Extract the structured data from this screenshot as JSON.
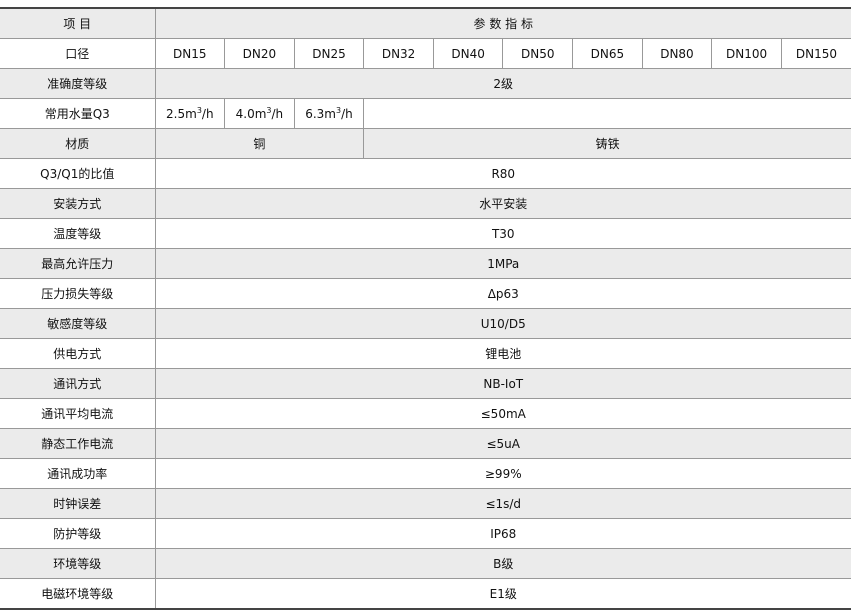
{
  "header": {
    "item": "项 目",
    "spec": "参 数 指 标"
  },
  "diameter": {
    "label": "口径",
    "values": [
      "DN15",
      "DN20",
      "DN25",
      "DN32",
      "DN40",
      "DN50",
      "DN65",
      "DN80",
      "DN100",
      "DN150"
    ]
  },
  "accuracy": {
    "label": "准确度等级",
    "value": "2级"
  },
  "q3": {
    "label": "常用水量Q3",
    "values": [
      "2.5m",
      "4.0m",
      "6.3m"
    ],
    "sup": "3",
    "unit": "/h"
  },
  "material": {
    "label": "材质",
    "small": "铜",
    "large": "铸铁"
  },
  "rows": [
    {
      "label": "Q3/Q1的比值",
      "value": "R80"
    },
    {
      "label": "安装方式",
      "value": "水平安装"
    },
    {
      "label": "温度等级",
      "value": "T30"
    },
    {
      "label": "最高允许压力",
      "value": "1MPa"
    },
    {
      "label": "压力损失等级",
      "value": "Δp63"
    },
    {
      "label": "敏感度等级",
      "value": "U10/D5"
    },
    {
      "label": "供电方式",
      "value": "锂电池"
    },
    {
      "label": "通讯方式",
      "value": "NB-IoT"
    },
    {
      "label": "通讯平均电流",
      "value": "≤50mA"
    },
    {
      "label": "静态工作电流",
      "value": "≤5uA"
    },
    {
      "label": "通讯成功率",
      "value": "≥99%"
    },
    {
      "label": "时钟误差",
      "value": "≤1s/d"
    },
    {
      "label": "防护等级",
      "value": "IP68"
    },
    {
      "label": "环境等级",
      "value": "B级"
    },
    {
      "label": "电磁环境等级",
      "value": "E1级"
    }
  ]
}
